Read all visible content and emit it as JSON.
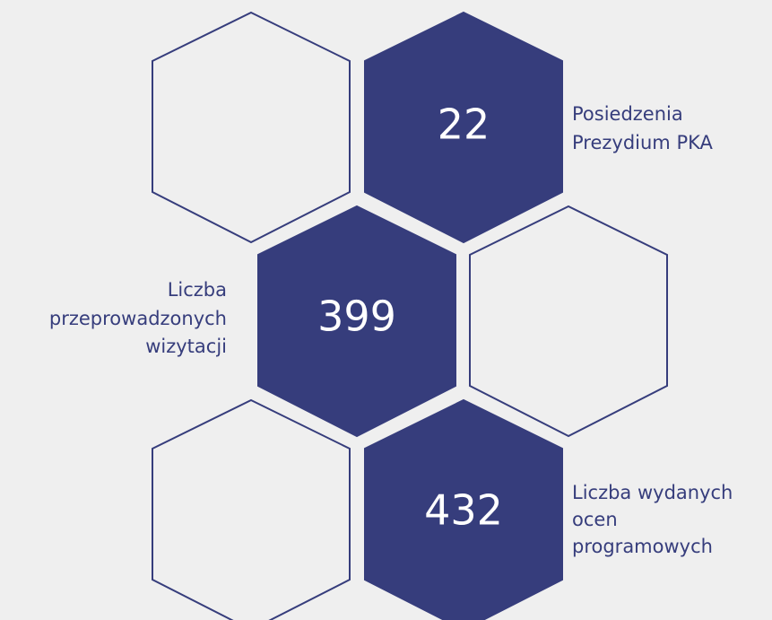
{
  "items": [
    {
      "value": 22,
      "label": [
        "Posiedzenia",
        "Prezydium PKA"
      ]
    },
    {
      "value": 399,
      "label": [
        "Liczba",
        "przeprowadzonych",
        "wizytacji"
      ]
    },
    {
      "value": 432,
      "label": [
        "Liczba wydanych",
        "ocen",
        "programowych"
      ]
    }
  ]
}
